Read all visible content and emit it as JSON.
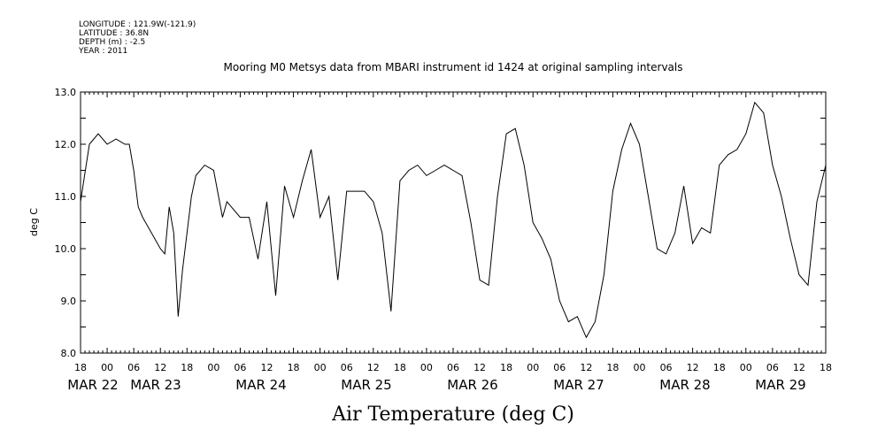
{
  "meta": {
    "lines": [
      "LONGITUDE : 121.9W(-121.9)",
      "LATITUDE : 36.8N",
      "DEPTH (m) : -2.5",
      "YEAR : 2011"
    ]
  },
  "chart_data": {
    "type": "line",
    "title": "Mooring M0 Metsys data from MBARI instrument id 1424 at original sampling intervals",
    "xlabel": "Air Temperature (deg C)",
    "ylabel": "deg C",
    "ylim": [
      8.0,
      13.0
    ],
    "yticks": [
      "8.0",
      "9.0",
      "10.0",
      "11.0",
      "12.0",
      "13.0"
    ],
    "xlim": [
      "2011-03-22T18:00",
      "2011-03-29T18:00"
    ],
    "xtick_hours": [
      "18",
      "00",
      "06",
      "12",
      "18",
      "00",
      "06",
      "12",
      "18",
      "00",
      "06",
      "12",
      "18",
      "00",
      "06",
      "12",
      "18",
      "00",
      "06",
      "12",
      "18",
      "00",
      "06",
      "12",
      "18",
      "00",
      "06",
      "12",
      "18"
    ],
    "date_labels": [
      "MAR 22",
      "MAR 23",
      "MAR 24",
      "MAR 25",
      "MAR 26",
      "MAR 27",
      "MAR 28",
      "MAR 29"
    ],
    "series": [
      {
        "x": [
          "2011-03-22T18:00",
          "2011-03-22T20:00",
          "2011-03-22T22:00",
          "2011-03-23T00:00",
          "2011-03-23T02:00",
          "2011-03-23T04:00",
          "2011-03-23T05:00",
          "2011-03-23T06:00",
          "2011-03-23T07:00",
          "2011-03-23T08:00",
          "2011-03-23T10:00",
          "2011-03-23T12:00",
          "2011-03-23T13:00",
          "2011-03-23T14:00",
          "2011-03-23T15:00",
          "2011-03-23T16:00",
          "2011-03-23T17:00",
          "2011-03-23T18:00",
          "2011-03-23T19:00",
          "2011-03-23T20:00",
          "2011-03-23T22:00",
          "2011-03-24T00:00",
          "2011-03-24T02:00",
          "2011-03-24T03:00",
          "2011-03-24T04:00",
          "2011-03-24T06:00",
          "2011-03-24T08:00",
          "2011-03-24T10:00",
          "2011-03-24T12:00",
          "2011-03-24T14:00",
          "2011-03-24T16:00",
          "2011-03-24T18:00",
          "2011-03-24T20:00",
          "2011-03-24T22:00",
          "2011-03-25T00:00",
          "2011-03-25T02:00",
          "2011-03-25T04:00",
          "2011-03-25T06:00",
          "2011-03-25T08:00",
          "2011-03-25T10:00",
          "2011-03-25T12:00",
          "2011-03-25T14:00",
          "2011-03-25T16:00",
          "2011-03-25T18:00",
          "2011-03-25T20:00",
          "2011-03-25T22:00",
          "2011-03-26T00:00",
          "2011-03-26T02:00",
          "2011-03-26T04:00",
          "2011-03-26T06:00",
          "2011-03-26T08:00",
          "2011-03-26T10:00",
          "2011-03-26T12:00",
          "2011-03-26T14:00",
          "2011-03-26T16:00",
          "2011-03-26T18:00",
          "2011-03-26T20:00",
          "2011-03-26T22:00",
          "2011-03-27T00:00",
          "2011-03-27T02:00",
          "2011-03-27T04:00",
          "2011-03-27T06:00",
          "2011-03-27T08:00",
          "2011-03-27T10:00",
          "2011-03-27T12:00",
          "2011-03-27T14:00",
          "2011-03-27T16:00",
          "2011-03-27T18:00",
          "2011-03-27T20:00",
          "2011-03-27T22:00",
          "2011-03-28T00:00",
          "2011-03-28T02:00",
          "2011-03-28T04:00",
          "2011-03-28T06:00",
          "2011-03-28T08:00",
          "2011-03-28T10:00",
          "2011-03-28T12:00",
          "2011-03-28T14:00",
          "2011-03-28T16:00",
          "2011-03-28T18:00",
          "2011-03-28T20:00",
          "2011-03-28T22:00",
          "2011-03-29T00:00",
          "2011-03-29T02:00",
          "2011-03-29T04:00",
          "2011-03-29T06:00",
          "2011-03-29T08:00",
          "2011-03-29T10:00",
          "2011-03-29T12:00",
          "2011-03-29T14:00",
          "2011-03-29T16:00",
          "2011-03-29T18:00"
        ],
        "values": [
          10.9,
          12.0,
          12.2,
          12.0,
          12.1,
          12.0,
          12.0,
          11.5,
          10.8,
          10.6,
          10.3,
          10.0,
          9.9,
          10.8,
          10.3,
          8.7,
          9.6,
          10.3,
          11.0,
          11.4,
          11.6,
          11.5,
          10.6,
          10.9,
          10.8,
          10.6,
          10.6,
          9.8,
          10.9,
          9.1,
          11.2,
          10.6,
          11.3,
          11.9,
          10.6,
          11.0,
          9.4,
          11.1,
          11.1,
          11.1,
          10.9,
          10.3,
          8.8,
          11.3,
          11.5,
          11.6,
          11.4,
          11.5,
          11.6,
          11.5,
          11.4,
          10.5,
          9.4,
          9.3,
          11.0,
          12.2,
          12.3,
          11.6,
          10.5,
          10.2,
          9.8,
          9.0,
          8.6,
          8.7,
          8.3,
          8.6,
          9.5,
          11.1,
          11.9,
          12.4,
          12.0,
          11.0,
          10.0,
          9.9,
          10.3,
          11.2,
          10.1,
          10.4,
          10.3,
          11.6,
          11.8,
          11.9,
          12.2,
          12.8,
          12.6,
          11.6,
          11.0,
          10.2,
          9.5,
          9.3,
          10.9,
          11.6
        ]
      }
    ]
  }
}
